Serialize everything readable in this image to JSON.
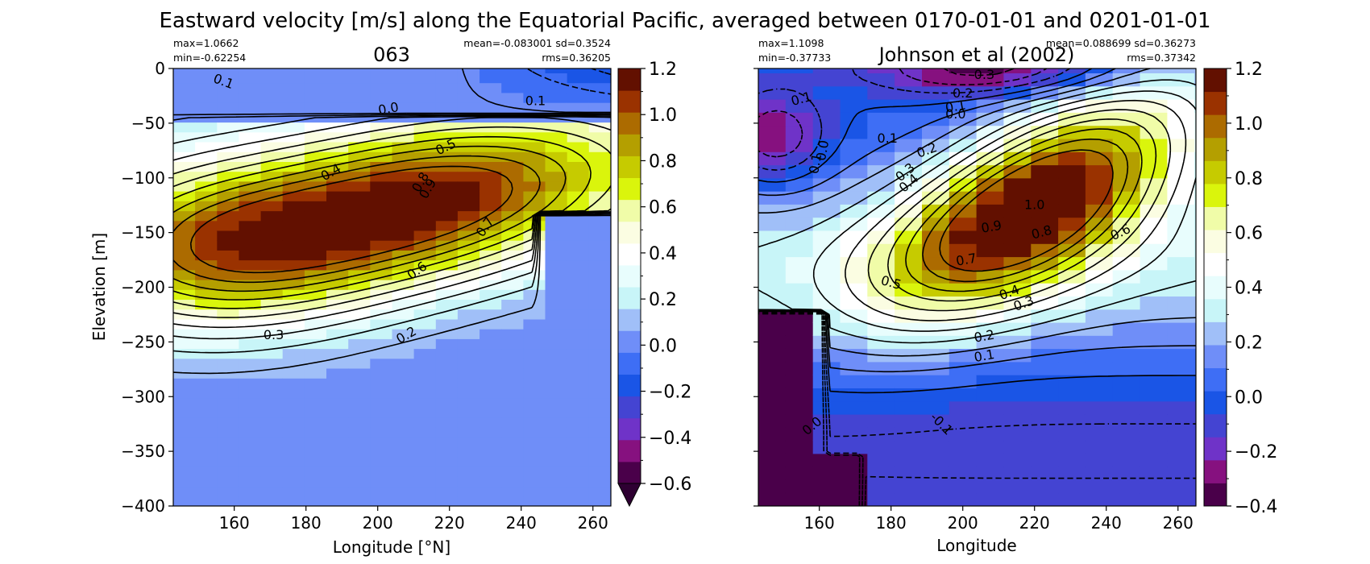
{
  "figure": {
    "suptitle": "Eastward velocity [m/s] along the Equatorial Pacific, averaged between 0170-01-01 and 0201-01-01"
  },
  "colors": {
    "cmap": [
      "#4a004a",
      "#86117f",
      "#6f33c8",
      "#4444d2",
      "#1a55e6",
      "#3e6ef5",
      "#6f8ef8",
      "#a0bff8",
      "#c8f5f8",
      "#e8fdfd",
      "#ffffff",
      "#fbfde2",
      "#f0fca8",
      "#daf50c",
      "#c6cb00",
      "#b49f00",
      "#ac6b00",
      "#9a3200",
      "#621000"
    ],
    "under": "#2e0032"
  },
  "chart_data": [
    {
      "type": "heatmap",
      "title": "063",
      "xlabel": "Longitude [°N]",
      "ylabel": "Elevation [m]",
      "stats": {
        "max": "max=1.0662",
        "min": "min=-0.62254",
        "mean_sd": "mean=-0.083001 sd=0.3524",
        "rms": "rms=0.36205"
      },
      "xlim": [
        143,
        265
      ],
      "ylim": [
        -400,
        0
      ],
      "xticks": [
        160,
        180,
        200,
        220,
        240,
        260
      ],
      "yticks": [
        0,
        -50,
        -100,
        -150,
        -200,
        -250,
        -300,
        -350,
        -400
      ],
      "ytick_labels": [
        "0",
        "−50",
        "−100",
        "−150",
        "−200",
        "−250",
        "−300",
        "−350",
        "−400"
      ],
      "colorbar": {
        "range": [
          -0.6,
          1.2
        ],
        "ticks": [
          -0.6,
          -0.4,
          -0.2,
          0.0,
          0.2,
          0.4,
          0.6,
          0.8,
          1.0,
          1.2
        ],
        "tick_labels": [
          "−0.6",
          "−0.4",
          "−0.2",
          "0.0",
          "0.2",
          "0.4",
          "0.6",
          "0.8",
          "1.0",
          "1.2"
        ],
        "extend_min": true
      },
      "core": {
        "x": 215,
        "y": -122,
        "value": 1.06
      },
      "contour_labels": [
        {
          "text": "0.1",
          "x": 157,
          "y": -12,
          "rot": 20
        },
        {
          "text": "0.0",
          "x": 203,
          "y": -37,
          "rot": -10
        },
        {
          "text": "0.1",
          "x": 244,
          "y": -30,
          "rot": 0
        },
        {
          "text": "0.5",
          "x": 219,
          "y": -72,
          "rot": -25
        },
        {
          "text": "0.4",
          "x": 187,
          "y": -95,
          "rot": -30
        },
        {
          "text": "0.8",
          "x": 212,
          "y": -104,
          "rot": -60
        },
        {
          "text": "0.9",
          "x": 214,
          "y": -110,
          "rot": -60
        },
        {
          "text": "0.7",
          "x": 230,
          "y": -145,
          "rot": -55
        },
        {
          "text": "0.6",
          "x": 211,
          "y": -185,
          "rot": -35
        },
        {
          "text": "0.3",
          "x": 171,
          "y": -244,
          "rot": 0
        },
        {
          "text": "0.2",
          "x": 208,
          "y": -244,
          "rot": -30
        }
      ]
    },
    {
      "type": "heatmap",
      "title": "Johnson et al (2002)",
      "xlabel": "Longitude",
      "ylabel": "",
      "stats": {
        "max": "max=1.1098",
        "min": "min=-0.37733",
        "mean_sd": "mean=0.088699 sd=0.36273",
        "rms": "rms=0.37342"
      },
      "xlim": [
        143,
        265
      ],
      "ylim": [
        -400,
        0
      ],
      "xticks": [
        160,
        180,
        200,
        220,
        240,
        260
      ],
      "colorbar": {
        "range": [
          -0.4,
          1.2
        ],
        "ticks": [
          -0.4,
          -0.2,
          0.0,
          0.2,
          0.4,
          0.6,
          0.8,
          1.0,
          1.2
        ],
        "tick_labels": [
          "−0.4",
          "−0.2",
          "0.0",
          "0.2",
          "0.4",
          "0.6",
          "0.8",
          "1.0",
          "1.2"
        ],
        "extend_min": false
      },
      "core": {
        "x": 235,
        "y": -85,
        "value": 1.11
      },
      "contour_labels": [
        {
          "text": "0.3",
          "x": 206,
          "y": -6,
          "rot": 0
        },
        {
          "text": "0.2",
          "x": 200,
          "y": -23,
          "rot": 0
        },
        {
          "text": "0.1",
          "x": 198,
          "y": -35,
          "rot": -10
        },
        {
          "text": "0.0",
          "x": 198,
          "y": -42,
          "rot": 0
        },
        {
          "text": "0.1",
          "x": 155,
          "y": -28,
          "rot": -15
        },
        {
          "text": "0.1",
          "x": 179,
          "y": -64,
          "rot": 0
        },
        {
          "text": "0.0",
          "x": 161,
          "y": -75,
          "rot": -80
        },
        {
          "text": "0.1",
          "x": 159,
          "y": -87,
          "rot": -80
        },
        {
          "text": "0.2",
          "x": 190,
          "y": -75,
          "rot": -20
        },
        {
          "text": "0.3",
          "x": 184,
          "y": -95,
          "rot": -40
        },
        {
          "text": "0.4",
          "x": 185,
          "y": -105,
          "rot": -40
        },
        {
          "text": "1.0",
          "x": 220,
          "y": -125,
          "rot": 0
        },
        {
          "text": "0.9",
          "x": 208,
          "y": -145,
          "rot": -10
        },
        {
          "text": "0.8",
          "x": 222,
          "y": -150,
          "rot": -15
        },
        {
          "text": "0.6",
          "x": 244,
          "y": -150,
          "rot": -25
        },
        {
          "text": "0.7",
          "x": 201,
          "y": -175,
          "rot": -10
        },
        {
          "text": "0.5",
          "x": 180,
          "y": -196,
          "rot": 15
        },
        {
          "text": "0.4",
          "x": 213,
          "y": -205,
          "rot": -20
        },
        {
          "text": "0.3",
          "x": 217,
          "y": -215,
          "rot": -20
        },
        {
          "text": "0.2",
          "x": 206,
          "y": -245,
          "rot": -10
        },
        {
          "text": "0.1",
          "x": 206,
          "y": -263,
          "rot": -10
        },
        {
          "text": "0.0",
          "x": 158,
          "y": -327,
          "rot": -40
        },
        {
          "text": "-0.1",
          "x": 194,
          "y": -325,
          "rot": 45
        }
      ]
    }
  ]
}
